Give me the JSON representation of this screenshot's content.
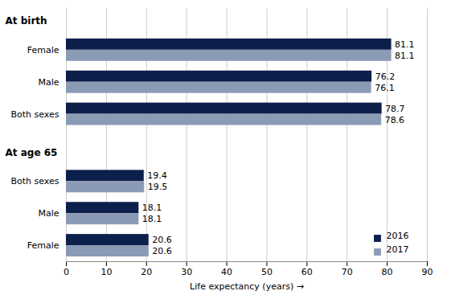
{
  "chart_data": {
    "type": "bar",
    "orientation": "horizontal",
    "xlabel": "Life expectancy (years)",
    "xlim": [
      0,
      90
    ],
    "xticks": [
      0,
      10,
      20,
      30,
      40,
      50,
      60,
      70,
      80,
      90
    ],
    "groups": [
      {
        "name": "At birth",
        "categories": [
          "Female",
          "Male",
          "Both sexes"
        ]
      },
      {
        "name": "At age 65",
        "categories": [
          "Both sexes",
          "Male",
          "Female"
        ]
      }
    ],
    "series": [
      {
        "name": "2016",
        "color": "#0d1f4b",
        "values": [
          81.1,
          76.2,
          78.7,
          19.4,
          18.1,
          20.6
        ]
      },
      {
        "name": "2017",
        "color": "#8c9bb5",
        "values": [
          81.1,
          76.1,
          78.6,
          19.5,
          18.1,
          20.6
        ]
      }
    ],
    "data_labels": true,
    "grid": true,
    "legend": "lower right"
  }
}
